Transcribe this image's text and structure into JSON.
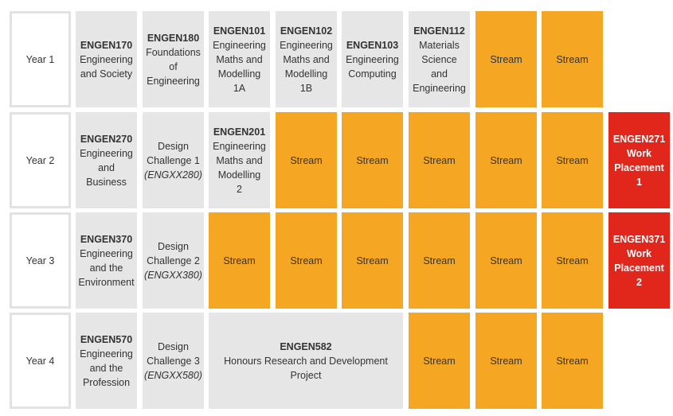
{
  "colors": {
    "course_bg": "#e6e6e6",
    "stream_bg": "#f5a623",
    "placement_bg": "#e1261c",
    "year_border": "#e2e2e2"
  },
  "years": [
    {
      "label": "Year 1",
      "cells": [
        {
          "type": "course",
          "code": "ENGEN170",
          "name": "Engineering\nand Society"
        },
        {
          "type": "course",
          "code": "ENGEN180",
          "name": "Foundations\nof\nEngineering"
        },
        {
          "type": "course",
          "code": "ENGEN101",
          "name": "Engineering\nMaths and\nModelling\n1A"
        },
        {
          "type": "course",
          "code": "ENGEN102",
          "name": "Engineering\nMaths and\nModelling\n1B"
        },
        {
          "type": "course",
          "code": "ENGEN103",
          "name": "Engineering\nComputing"
        },
        {
          "type": "course",
          "code": "ENGEN112",
          "name": "Materials\nScience\nand\nEngineering"
        },
        {
          "type": "stream",
          "label": "Stream"
        },
        {
          "type": "stream",
          "label": "Stream"
        }
      ]
    },
    {
      "label": "Year 2",
      "cells": [
        {
          "type": "course",
          "code": "ENGEN270",
          "name": "Engineering\nand\nBusiness"
        },
        {
          "type": "design",
          "name": "Design\nChallenge 1",
          "code": "(ENGXX280)"
        },
        {
          "type": "course",
          "code": "ENGEN201",
          "name": "Engineering\nMaths and\nModelling\n2"
        },
        {
          "type": "stream",
          "label": "Stream"
        },
        {
          "type": "stream",
          "label": "Stream"
        },
        {
          "type": "stream",
          "label": "Stream"
        },
        {
          "type": "stream",
          "label": "Stream"
        },
        {
          "type": "stream",
          "label": "Stream"
        },
        {
          "type": "placement",
          "label": "ENGEN271\nWork\nPlacement\n1"
        }
      ]
    },
    {
      "label": "Year 3",
      "cells": [
        {
          "type": "course",
          "code": "ENGEN370",
          "name": "Engineering\nand the\nEnvironment"
        },
        {
          "type": "design",
          "name": "Design\nChallenge 2",
          "code": "(ENGXX380)"
        },
        {
          "type": "stream",
          "label": "Stream"
        },
        {
          "type": "stream",
          "label": "Stream"
        },
        {
          "type": "stream",
          "label": "Stream"
        },
        {
          "type": "stream",
          "label": "Stream"
        },
        {
          "type": "stream",
          "label": "Stream"
        },
        {
          "type": "stream",
          "label": "Stream"
        },
        {
          "type": "placement",
          "label": "ENGEN371\nWork\nPlacement\n2"
        }
      ]
    },
    {
      "label": "Year 4",
      "cells": [
        {
          "type": "course",
          "code": "ENGEN570",
          "name": "Engineering\nand the\nProfession"
        },
        {
          "type": "design",
          "name": "Design\nChallenge 3",
          "code": "(ENGXX580)"
        },
        {
          "type": "course",
          "code": "ENGEN582",
          "name": "Honours Research and Development\nProject",
          "span": 3
        },
        {
          "type": "stream",
          "label": "Stream"
        },
        {
          "type": "stream",
          "label": "Stream"
        },
        {
          "type": "stream",
          "label": "Stream"
        }
      ]
    }
  ]
}
